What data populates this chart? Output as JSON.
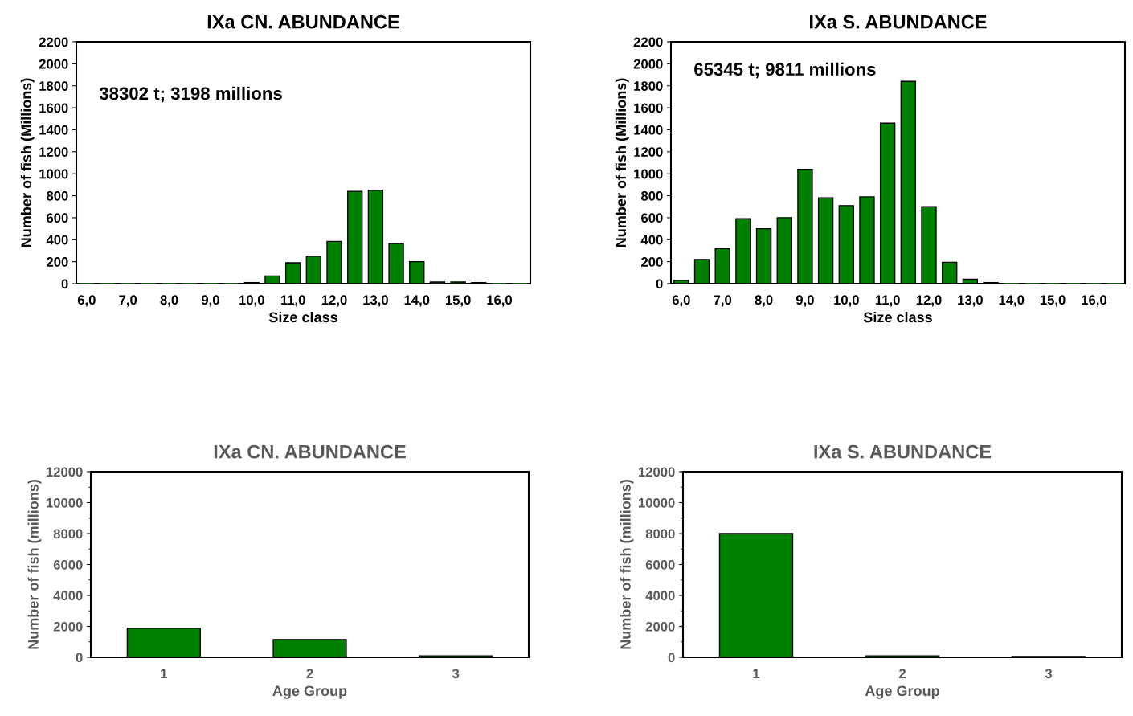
{
  "chart_data": [
    {
      "type": "bar",
      "title": "IXa CN. ABUNDANCE",
      "xlabel": "Size class",
      "ylabel": "Number of fish (Millions)",
      "categories": [
        "6,0",
        null,
        "7,0",
        null,
        "8,0",
        null,
        "9,0",
        null,
        "10,0",
        null,
        "11,0",
        null,
        "12,0",
        null,
        "13,0",
        null,
        "14,0",
        null,
        "15,0",
        null,
        "16,0",
        null
      ],
      "values": [
        0,
        0,
        0,
        0,
        0,
        0,
        0,
        0,
        10,
        70,
        190,
        250,
        385,
        840,
        850,
        365,
        200,
        15,
        15,
        10,
        0,
        0
      ],
      "color": "#008000",
      "ylim": [
        0,
        2200
      ],
      "yticks": [
        0,
        200,
        400,
        600,
        800,
        1000,
        1200,
        1400,
        1600,
        1800,
        2000,
        2200
      ],
      "annotations": [
        "38302 t; 3198 millions"
      ]
    },
    {
      "type": "bar",
      "title": "IXa S. ABUNDANCE",
      "xlabel": "Size class",
      "ylabel": "Number of fish (Millions)",
      "categories": [
        "6,0",
        null,
        "7,0",
        null,
        "8,0",
        null,
        "9,0",
        null,
        "10,0",
        null,
        "11,0",
        null,
        "12,0",
        null,
        "13,0",
        null,
        "14,0",
        null,
        "15,0",
        null,
        "16,0",
        null
      ],
      "values": [
        30,
        220,
        320,
        590,
        500,
        600,
        1040,
        780,
        710,
        790,
        1460,
        1840,
        700,
        195,
        40,
        10,
        0,
        0,
        0,
        0,
        0,
        0
      ],
      "color": "#008000",
      "ylim": [
        0,
        2200
      ],
      "yticks": [
        0,
        200,
        400,
        600,
        800,
        1000,
        1200,
        1400,
        1600,
        1800,
        2000,
        2200
      ],
      "annotations": [
        "65345 t; 9811 millions"
      ]
    },
    {
      "type": "bar",
      "title": "IXa CN. ABUNDANCE",
      "xlabel": "Age Group",
      "ylabel": "Number of fish (millions)",
      "categories": [
        "1",
        "2",
        "3"
      ],
      "values": [
        1880,
        1150,
        100
      ],
      "color": "#008000",
      "ylim": [
        0,
        12000
      ],
      "yticks": [
        0,
        2000,
        4000,
        6000,
        8000,
        10000,
        12000
      ]
    },
    {
      "type": "bar",
      "title": "IXa S. ABUNDANCE",
      "xlabel": "Age Group",
      "ylabel": "Number of fish (millions)",
      "categories": [
        "1",
        "2",
        "3"
      ],
      "values": [
        8000,
        100,
        60
      ],
      "color": "#008000",
      "ylim": [
        0,
        12000
      ],
      "yticks": [
        0,
        2000,
        4000,
        6000,
        8000,
        10000,
        12000
      ]
    }
  ]
}
